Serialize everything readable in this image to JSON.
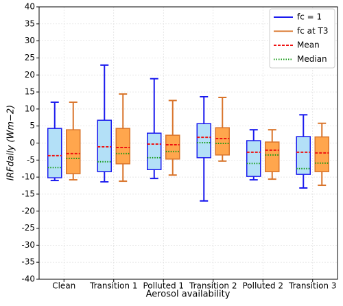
{
  "chart_data": {
    "type": "box",
    "xlabel": "Aerosol availability",
    "ylabel": "IRFdaily (Wm−2)",
    "categories": [
      "Clean",
      "Transition 1",
      "Polluted 1",
      "Transition 2",
      "Polluted 2",
      "Transition 3"
    ],
    "series": [
      {
        "name": "fc = 1",
        "color": "#1a1aee",
        "fill": "#b3e0f7",
        "values": [
          {
            "whislo": -11,
            "q1": -10.2,
            "med": -7.2,
            "mean": -3.7,
            "q3": 4.3,
            "whishi": 12
          },
          {
            "whislo": -11.4,
            "q1": -8.4,
            "med": -5.5,
            "mean": -1.1,
            "q3": 6.7,
            "whishi": 22.9
          },
          {
            "whislo": -10.4,
            "q1": -7.8,
            "med": -4.3,
            "mean": -0.3,
            "q3": 2.9,
            "whishi": 18.9
          },
          {
            "whislo": -17,
            "q1": -4.3,
            "med": 0.1,
            "mean": 1.7,
            "q3": 5.7,
            "whishi": 13.6
          },
          {
            "whislo": -10.8,
            "q1": -9.8,
            "med": -6,
            "mean": -2.7,
            "q3": 0.7,
            "whishi": 3.9
          },
          {
            "whislo": -13.2,
            "q1": -9.2,
            "med": -7.5,
            "mean": -2.7,
            "q3": 1.9,
            "whishi": 8.3
          }
        ]
      },
      {
        "name": "fc at T3",
        "color": "#d9742a",
        "fill": "#ffa64d",
        "values": [
          {
            "whislo": -10.8,
            "q1": -9,
            "med": -4.5,
            "mean": -3.1,
            "q3": 3.9,
            "whishi": 12
          },
          {
            "whislo": -11.2,
            "q1": -6.1,
            "med": -3.1,
            "mean": -1.3,
            "q3": 4.3,
            "whishi": 14.4
          },
          {
            "whislo": -9.4,
            "q1": -4.7,
            "med": -2.5,
            "mean": -0.5,
            "q3": 2.3,
            "whishi": 12.5
          },
          {
            "whislo": -5.3,
            "q1": -3.5,
            "med": -0.1,
            "mean": 1.3,
            "q3": 4.5,
            "whishi": 13.4
          },
          {
            "whislo": -10.6,
            "q1": -8.4,
            "med": -3.5,
            "mean": -2.1,
            "q3": 0.3,
            "whishi": 3.9
          },
          {
            "whislo": -12.4,
            "q1": -8.4,
            "med": -5.9,
            "mean": -2.9,
            "q3": 1.8,
            "whishi": 5.8
          }
        ]
      }
    ],
    "mean_label": "Mean",
    "mean_color": "#ee1111",
    "median_label": "Median",
    "median_color": "#119911",
    "ylim": [
      -40,
      40
    ],
    "yticks": [
      -40,
      -35,
      -30,
      -25,
      -20,
      -15,
      -10,
      -5,
      0,
      5,
      10,
      15,
      20,
      25,
      30,
      35,
      40
    ],
    "grid": true
  }
}
